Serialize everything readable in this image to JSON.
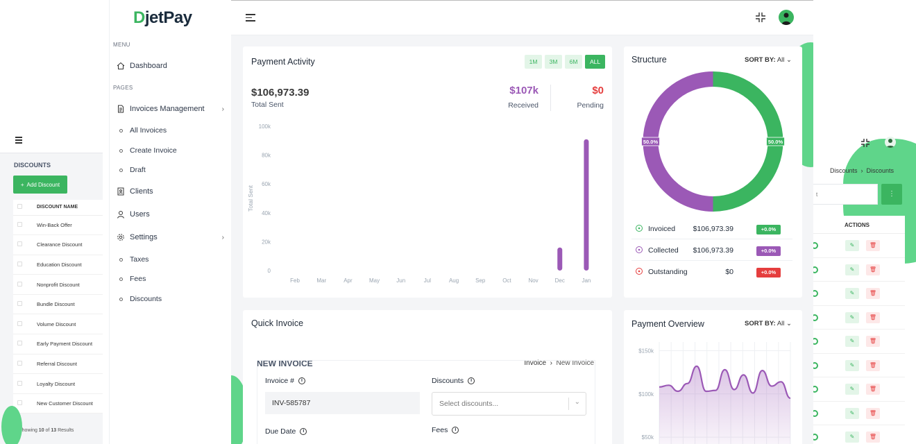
{
  "left_bg": {
    "title": "DISCOUNTS",
    "add_label": "Add Discount",
    "column": "DISCOUNT NAME",
    "rows": [
      "Win-Back Offer",
      "Clearance Discount",
      "Education Discount",
      "Nonprofit Discount",
      "Bundle Discount",
      "Volume Discount",
      "Early Payment Discount",
      "Referral Discount",
      "Loyalty Discount",
      "New Customer Discount"
    ],
    "footer_prefix": "Showing ",
    "footer_count": "10",
    "footer_mid": " of ",
    "footer_total": "13",
    "footer_suffix": " Results"
  },
  "right_bg": {
    "breadcrumb_1": "Discounts",
    "breadcrumb_2": "Discounts",
    "search_text": "t",
    "actions_header": "ACTIONS"
  },
  "sidebar": {
    "logo_d": "D",
    "logo_rest": "jetPay",
    "menu_caption": "MENU",
    "pages_caption": "PAGES",
    "dashboard": "Dashboard",
    "invoices": "Invoices Management",
    "all_invoices": "All Invoices",
    "create_invoice": "Create Invoice",
    "draft": "Draft",
    "clients": "Clients",
    "users": "Users",
    "settings": "Settings",
    "taxes": "Taxes",
    "fees": "Fees",
    "discounts": "Discounts"
  },
  "payment_activity": {
    "title": "Payment Activity",
    "ranges": [
      "1M",
      "3M",
      "6M",
      "ALL"
    ],
    "active_range": "ALL",
    "total": "$106,973.39",
    "total_label": "Total Sent",
    "received": "$107k",
    "received_label": "Received",
    "pending": "$0",
    "pending_label": "Pending"
  },
  "structure": {
    "title": "Structure",
    "sort_label": "SORT BY:",
    "sort_value": "All",
    "left_pct": "50.0%",
    "right_pct": "50.0%",
    "rows": [
      {
        "name": "Invoiced",
        "value": "$106,973.39",
        "badge": "+0.0%"
      },
      {
        "name": "Collected",
        "value": "$106,973.39",
        "badge": "+0.0%"
      },
      {
        "name": "Outstanding",
        "value": "$0",
        "badge": "+0.0%"
      }
    ]
  },
  "quick_invoice": {
    "title": "Quick Invoice",
    "section": "NEW INVOICE",
    "crumb_1": "Invoice",
    "crumb_2": "New Invoice",
    "invoice_label": "Invoice #",
    "invoice_value": "INV-585787",
    "discounts_label": "Discounts",
    "discounts_placeholder": "Select discounts...",
    "due_label": "Due Date",
    "fees_label": "Fees"
  },
  "payment_overview": {
    "title": "Payment Overview",
    "sort_label": "SORT BY:",
    "sort_value": "All",
    "yticks": [
      "$150k",
      "$100k",
      "$50k"
    ]
  },
  "colors": {
    "green": "#3bb560",
    "purple": "#9b59b6",
    "red": "#e53e3e"
  },
  "chart_data": [
    {
      "type": "bar",
      "ylabel": "Total Sent",
      "categories": [
        "Feb",
        "Mar",
        "Apr",
        "May",
        "Jun",
        "Jul",
        "Aug",
        "Sep",
        "Oct",
        "Nov",
        "Dec",
        "Jan"
      ],
      "values": [
        0,
        0,
        0,
        0,
        0,
        0,
        0,
        0,
        0,
        0,
        16000,
        91000
      ],
      "yticks": [
        "0",
        "20k",
        "40k",
        "60k",
        "80k",
        "100k"
      ],
      "ylim": [
        0,
        100000
      ]
    },
    {
      "type": "pie",
      "labels": [
        "Invoiced",
        "Collected"
      ],
      "values": [
        50.0,
        50.0
      ]
    },
    {
      "type": "area",
      "series_values": [
        108,
        110,
        103,
        112,
        132,
        103,
        104,
        128,
        105,
        122,
        101,
        127,
        109,
        114,
        95
      ],
      "ylim": [
        30000,
        160000
      ]
    }
  ]
}
